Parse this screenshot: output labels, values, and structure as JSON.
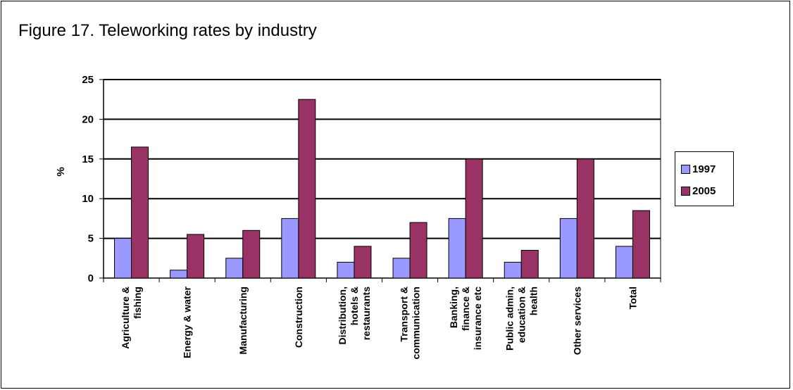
{
  "title": "Figure 17. Teleworking rates by industry",
  "chart_data": {
    "type": "bar",
    "title": "Figure 17. Teleworking rates by industry",
    "xlabel": "",
    "ylabel": "%",
    "ylim": [
      0,
      25
    ],
    "yticks": [
      "0",
      "5",
      "10",
      "15",
      "20",
      "25"
    ],
    "grid": true,
    "legend_position": "right",
    "categories": [
      [
        "Agriculture &",
        "fishing"
      ],
      [
        "Energy & water"
      ],
      [
        "Manufacturing"
      ],
      [
        "Construction"
      ],
      [
        "Distribution,",
        "hotels &",
        "restaurants"
      ],
      [
        "Transport &",
        "communication"
      ],
      [
        "Banking,",
        "finance &",
        "insurance etc"
      ],
      [
        "Public admin,",
        "education &",
        "health"
      ],
      [
        "Other services"
      ],
      [
        "Total"
      ]
    ],
    "series": [
      {
        "name": "1997",
        "color": "#9999ff",
        "values": [
          5,
          1,
          2.5,
          7.5,
          2,
          2.5,
          7.5,
          2,
          7.5,
          4
        ]
      },
      {
        "name": "2005",
        "color": "#993366",
        "values": [
          16.5,
          5.5,
          6,
          22.5,
          4,
          7,
          15,
          3.5,
          15,
          8.5
        ]
      }
    ]
  }
}
